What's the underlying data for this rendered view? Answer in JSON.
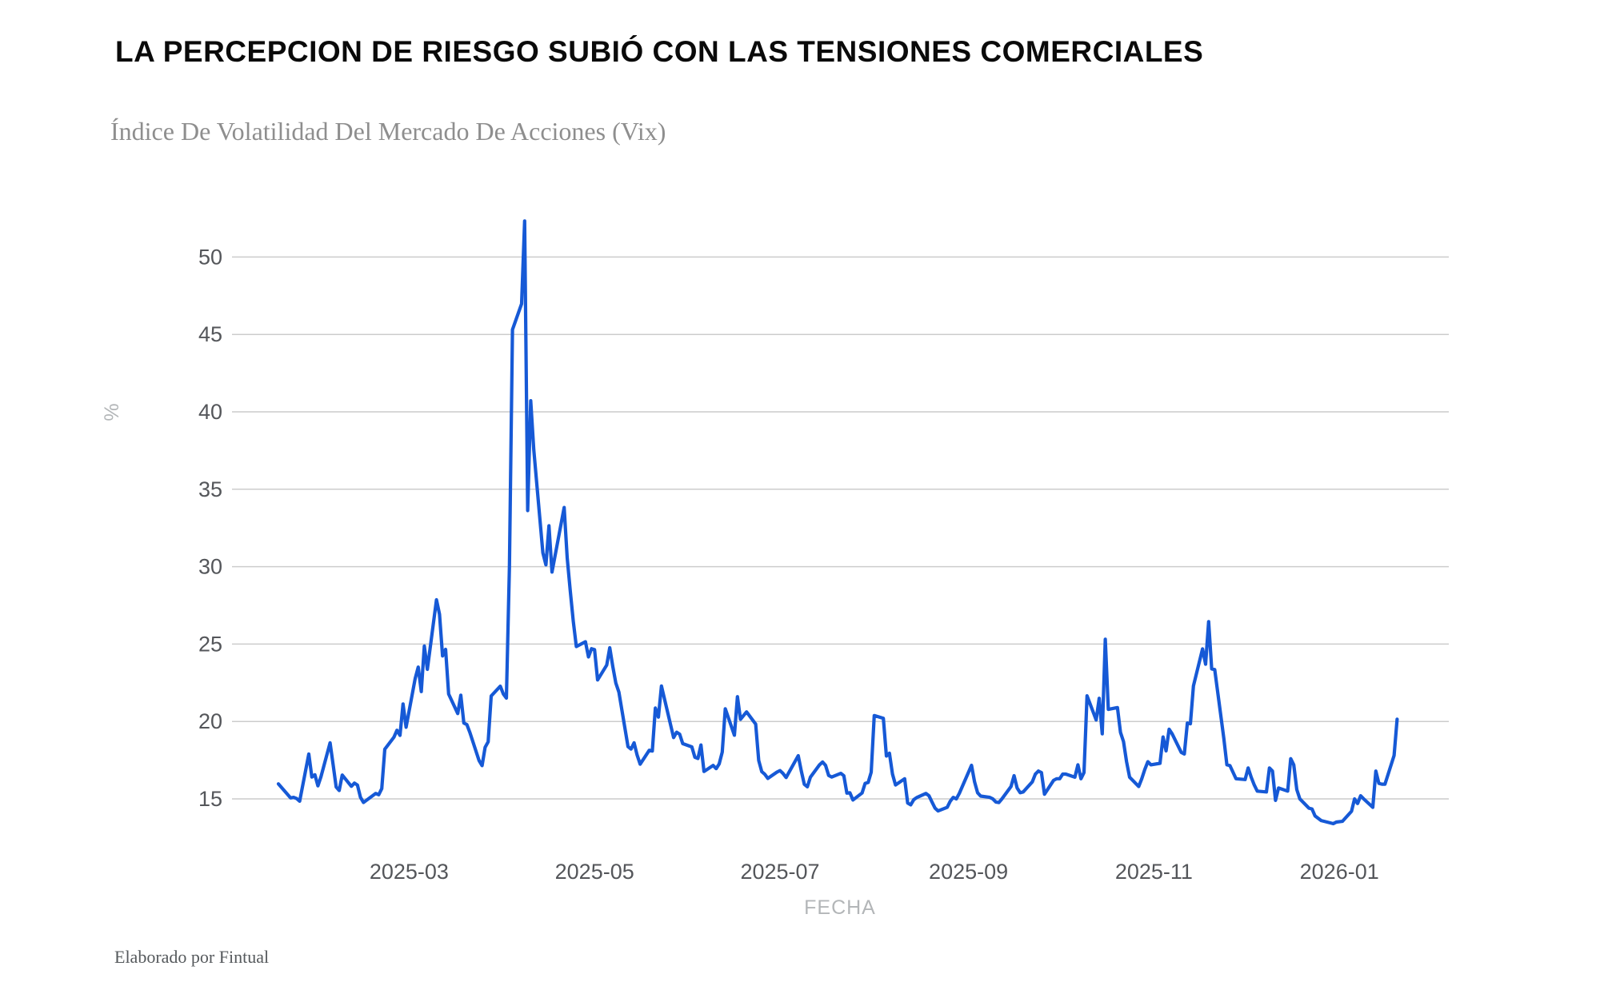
{
  "header": {
    "title": "LA PERCEPCION DE RIESGO SUBIÓ CON LAS TENSIONES COMERCIALES",
    "subtitle": "Índice De Volatilidad Del Mercado De Acciones (Vix)"
  },
  "footer": {
    "credit": "Elaborado por Fintual"
  },
  "chart_data": {
    "type": "line",
    "title": "LA PERCEPCION DE RIESGO SUBIÓ CON LAS TENSIONES COMERCIALES",
    "subtitle": "Índice De Volatilidad Del Mercado De Acciones (Vix)",
    "xlabel": "FECHA",
    "ylabel": "%",
    "grid": true,
    "legend": "none",
    "ylim": [
      13,
      53
    ],
    "y_ticks": [
      15,
      20,
      25,
      30,
      35,
      40,
      45,
      50
    ],
    "x_ticks": [
      {
        "label": "2025-03",
        "date": "2025-03-01"
      },
      {
        "label": "2025-05",
        "date": "2025-05-01"
      },
      {
        "label": "2025-07",
        "date": "2025-07-01"
      },
      {
        "label": "2025-09",
        "date": "2025-09-01"
      },
      {
        "label": "2025-11",
        "date": "2025-11-01"
      },
      {
        "label": "2026-01",
        "date": "2026-01-01"
      }
    ],
    "line_color": "#1659d6",
    "grid_color": "#cccccc",
    "tick_color": "#54565a",
    "axis_label_color": "#b3b6b8",
    "series": [
      {
        "name": "VIX",
        "points": [
          [
            "2025-01-17",
            15.97
          ],
          [
            "2025-01-21",
            15.06
          ],
          [
            "2025-01-22",
            15.1
          ],
          [
            "2025-01-23",
            15.02
          ],
          [
            "2025-01-24",
            14.85
          ],
          [
            "2025-01-27",
            17.9
          ],
          [
            "2025-01-28",
            16.41
          ],
          [
            "2025-01-29",
            16.56
          ],
          [
            "2025-01-30",
            15.84
          ],
          [
            "2025-01-31",
            16.43
          ],
          [
            "2025-02-03",
            18.62
          ],
          [
            "2025-02-04",
            17.21
          ],
          [
            "2025-02-05",
            15.77
          ],
          [
            "2025-02-06",
            15.54
          ],
          [
            "2025-02-07",
            16.54
          ],
          [
            "2025-02-10",
            15.81
          ],
          [
            "2025-02-11",
            16.02
          ],
          [
            "2025-02-12",
            15.89
          ],
          [
            "2025-02-13",
            15.1
          ],
          [
            "2025-02-14",
            14.77
          ],
          [
            "2025-02-18",
            15.35
          ],
          [
            "2025-02-19",
            15.27
          ],
          [
            "2025-02-20",
            15.66
          ],
          [
            "2025-02-21",
            18.21
          ],
          [
            "2025-02-24",
            18.98
          ],
          [
            "2025-02-25",
            19.43
          ],
          [
            "2025-02-26",
            19.1
          ],
          [
            "2025-02-27",
            21.13
          ],
          [
            "2025-02-28",
            19.63
          ],
          [
            "2025-03-03",
            22.78
          ],
          [
            "2025-03-04",
            23.51
          ],
          [
            "2025-03-05",
            21.93
          ],
          [
            "2025-03-06",
            24.87
          ],
          [
            "2025-03-07",
            23.37
          ],
          [
            "2025-03-10",
            27.86
          ],
          [
            "2025-03-11",
            26.92
          ],
          [
            "2025-03-12",
            24.23
          ],
          [
            "2025-03-13",
            24.66
          ],
          [
            "2025-03-14",
            21.77
          ],
          [
            "2025-03-17",
            20.51
          ],
          [
            "2025-03-18",
            21.7
          ],
          [
            "2025-03-19",
            19.9
          ],
          [
            "2025-03-20",
            19.8
          ],
          [
            "2025-03-21",
            19.28
          ],
          [
            "2025-03-24",
            17.48
          ],
          [
            "2025-03-25",
            17.15
          ],
          [
            "2025-03-26",
            18.33
          ],
          [
            "2025-03-27",
            18.69
          ],
          [
            "2025-03-28",
            21.65
          ],
          [
            "2025-03-31",
            22.28
          ],
          [
            "2025-04-01",
            21.77
          ],
          [
            "2025-04-02",
            21.51
          ],
          [
            "2025-04-03",
            30.02
          ],
          [
            "2025-04-04",
            45.31
          ],
          [
            "2025-04-07",
            46.98
          ],
          [
            "2025-04-08",
            52.33
          ],
          [
            "2025-04-09",
            33.62
          ],
          [
            "2025-04-10",
            40.72
          ],
          [
            "2025-04-11",
            37.56
          ],
          [
            "2025-04-14",
            30.89
          ],
          [
            "2025-04-15",
            30.12
          ],
          [
            "2025-04-16",
            32.64
          ],
          [
            "2025-04-17",
            29.65
          ],
          [
            "2025-04-21",
            33.82
          ],
          [
            "2025-04-22",
            30.57
          ],
          [
            "2025-04-23",
            28.45
          ],
          [
            "2025-04-24",
            26.47
          ],
          [
            "2025-04-25",
            24.84
          ],
          [
            "2025-04-28",
            25.15
          ],
          [
            "2025-04-29",
            24.17
          ],
          [
            "2025-04-30",
            24.7
          ],
          [
            "2025-05-01",
            24.64
          ],
          [
            "2025-05-02",
            22.68
          ],
          [
            "2025-05-05",
            23.64
          ],
          [
            "2025-05-06",
            24.76
          ],
          [
            "2025-05-07",
            23.55
          ],
          [
            "2025-05-08",
            22.48
          ],
          [
            "2025-05-09",
            21.9
          ],
          [
            "2025-05-12",
            18.38
          ],
          [
            "2025-05-13",
            18.22
          ],
          [
            "2025-05-14",
            18.62
          ],
          [
            "2025-05-15",
            17.83
          ],
          [
            "2025-05-16",
            17.24
          ],
          [
            "2025-05-19",
            18.14
          ],
          [
            "2025-05-20",
            18.09
          ],
          [
            "2025-05-21",
            20.87
          ],
          [
            "2025-05-22",
            20.28
          ],
          [
            "2025-05-23",
            22.29
          ],
          [
            "2025-05-27",
            18.96
          ],
          [
            "2025-05-28",
            19.31
          ],
          [
            "2025-05-29",
            19.18
          ],
          [
            "2025-05-30",
            18.57
          ],
          [
            "2025-06-02",
            18.36
          ],
          [
            "2025-06-03",
            17.69
          ],
          [
            "2025-06-04",
            17.61
          ],
          [
            "2025-06-05",
            18.48
          ],
          [
            "2025-06-06",
            16.77
          ],
          [
            "2025-06-09",
            17.16
          ],
          [
            "2025-06-10",
            16.95
          ],
          [
            "2025-06-11",
            17.26
          ],
          [
            "2025-06-12",
            18.02
          ],
          [
            "2025-06-13",
            20.82
          ],
          [
            "2025-06-16",
            19.11
          ],
          [
            "2025-06-17",
            21.6
          ],
          [
            "2025-06-18",
            20.14
          ],
          [
            "2025-06-20",
            20.62
          ],
          [
            "2025-06-23",
            19.83
          ],
          [
            "2025-06-24",
            17.48
          ],
          [
            "2025-06-25",
            16.76
          ],
          [
            "2025-06-26",
            16.59
          ],
          [
            "2025-06-27",
            16.32
          ],
          [
            "2025-06-30",
            16.73
          ],
          [
            "2025-07-01",
            16.83
          ],
          [
            "2025-07-02",
            16.64
          ],
          [
            "2025-07-03",
            16.38
          ],
          [
            "2025-07-07",
            17.79
          ],
          [
            "2025-07-08",
            16.81
          ],
          [
            "2025-07-09",
            15.94
          ],
          [
            "2025-07-10",
            15.78
          ],
          [
            "2025-07-11",
            16.4
          ],
          [
            "2025-07-14",
            17.2
          ],
          [
            "2025-07-15",
            17.38
          ],
          [
            "2025-07-16",
            17.16
          ],
          [
            "2025-07-17",
            16.52
          ],
          [
            "2025-07-18",
            16.41
          ],
          [
            "2025-07-21",
            16.65
          ],
          [
            "2025-07-22",
            16.5
          ],
          [
            "2025-07-23",
            15.37
          ],
          [
            "2025-07-24",
            15.39
          ],
          [
            "2025-07-25",
            14.93
          ],
          [
            "2025-07-28",
            15.38
          ],
          [
            "2025-07-29",
            16.0
          ],
          [
            "2025-07-30",
            16.06
          ],
          [
            "2025-07-31",
            16.72
          ],
          [
            "2025-08-01",
            20.38
          ],
          [
            "2025-08-04",
            20.2
          ],
          [
            "2025-08-05",
            17.77
          ],
          [
            "2025-08-06",
            17.95
          ],
          [
            "2025-08-07",
            16.6
          ],
          [
            "2025-08-08",
            15.9
          ],
          [
            "2025-08-11",
            16.3
          ],
          [
            "2025-08-12",
            14.73
          ],
          [
            "2025-08-13",
            14.62
          ],
          [
            "2025-08-14",
            14.95
          ],
          [
            "2025-08-15",
            15.09
          ],
          [
            "2025-08-18",
            15.35
          ],
          [
            "2025-08-19",
            15.2
          ],
          [
            "2025-08-20",
            14.8
          ],
          [
            "2025-08-21",
            14.4
          ],
          [
            "2025-08-22",
            14.22
          ],
          [
            "2025-08-25",
            14.45
          ],
          [
            "2025-08-26",
            14.85
          ],
          [
            "2025-08-27",
            15.1
          ],
          [
            "2025-08-28",
            15.0
          ],
          [
            "2025-08-29",
            15.36
          ],
          [
            "2025-09-02",
            17.17
          ],
          [
            "2025-09-03",
            16.1
          ],
          [
            "2025-09-04",
            15.4
          ],
          [
            "2025-09-05",
            15.18
          ],
          [
            "2025-09-08",
            15.1
          ],
          [
            "2025-09-09",
            15.0
          ],
          [
            "2025-09-10",
            14.8
          ],
          [
            "2025-09-11",
            14.76
          ],
          [
            "2025-09-12",
            15.0
          ],
          [
            "2025-09-15",
            15.8
          ],
          [
            "2025-09-16",
            16.5
          ],
          [
            "2025-09-17",
            15.7
          ],
          [
            "2025-09-18",
            15.4
          ],
          [
            "2025-09-19",
            15.45
          ],
          [
            "2025-09-22",
            16.1
          ],
          [
            "2025-09-23",
            16.6
          ],
          [
            "2025-09-24",
            16.8
          ],
          [
            "2025-09-25",
            16.7
          ],
          [
            "2025-09-26",
            15.3
          ],
          [
            "2025-09-29",
            16.2
          ],
          [
            "2025-09-30",
            16.3
          ],
          [
            "2025-10-01",
            16.3
          ],
          [
            "2025-10-02",
            16.6
          ],
          [
            "2025-10-03",
            16.6
          ],
          [
            "2025-10-06",
            16.4
          ],
          [
            "2025-10-07",
            17.2
          ],
          [
            "2025-10-08",
            16.3
          ],
          [
            "2025-10-09",
            16.7
          ],
          [
            "2025-10-10",
            21.66
          ],
          [
            "2025-10-13",
            20.1
          ],
          [
            "2025-10-14",
            21.5
          ],
          [
            "2025-10-15",
            19.2
          ],
          [
            "2025-10-16",
            25.31
          ],
          [
            "2025-10-17",
            20.78
          ],
          [
            "2025-10-20",
            20.9
          ],
          [
            "2025-10-21",
            19.3
          ],
          [
            "2025-10-22",
            18.7
          ],
          [
            "2025-10-23",
            17.4
          ],
          [
            "2025-10-24",
            16.4
          ],
          [
            "2025-10-27",
            15.8
          ],
          [
            "2025-10-28",
            16.3
          ],
          [
            "2025-10-29",
            16.9
          ],
          [
            "2025-10-30",
            17.4
          ],
          [
            "2025-10-31",
            17.2
          ],
          [
            "2025-11-03",
            17.3
          ],
          [
            "2025-11-04",
            19.0
          ],
          [
            "2025-11-05",
            18.1
          ],
          [
            "2025-11-06",
            19.5
          ],
          [
            "2025-11-07",
            19.2
          ],
          [
            "2025-11-10",
            18.0
          ],
          [
            "2025-11-11",
            17.9
          ],
          [
            "2025-11-12",
            19.9
          ],
          [
            "2025-11-13",
            19.85
          ],
          [
            "2025-11-14",
            22.3
          ],
          [
            "2025-11-17",
            24.69
          ],
          [
            "2025-11-18",
            23.7
          ],
          [
            "2025-11-19",
            26.45
          ],
          [
            "2025-11-20",
            23.4
          ],
          [
            "2025-11-21",
            23.35
          ],
          [
            "2025-11-24",
            18.9
          ],
          [
            "2025-11-25",
            17.2
          ],
          [
            "2025-11-26",
            17.15
          ],
          [
            "2025-11-28",
            16.3
          ],
          [
            "2025-12-01",
            16.25
          ],
          [
            "2025-12-02",
            17.0
          ],
          [
            "2025-12-03",
            16.4
          ],
          [
            "2025-12-04",
            15.9
          ],
          [
            "2025-12-05",
            15.5
          ],
          [
            "2025-12-08",
            15.45
          ],
          [
            "2025-12-09",
            17.0
          ],
          [
            "2025-12-10",
            16.8
          ],
          [
            "2025-12-11",
            14.9
          ],
          [
            "2025-12-12",
            15.7
          ],
          [
            "2025-12-15",
            15.5
          ],
          [
            "2025-12-16",
            17.6
          ],
          [
            "2025-12-17",
            17.2
          ],
          [
            "2025-12-18",
            15.6
          ],
          [
            "2025-12-19",
            15.0
          ],
          [
            "2025-12-22",
            14.4
          ],
          [
            "2025-12-23",
            14.35
          ],
          [
            "2025-12-24",
            13.9
          ],
          [
            "2025-12-26",
            13.6
          ],
          [
            "2025-12-29",
            13.45
          ],
          [
            "2025-12-30",
            13.4
          ],
          [
            "2025-12-31",
            13.5
          ],
          [
            "2026-01-02",
            13.55
          ],
          [
            "2026-01-05",
            14.2
          ],
          [
            "2026-01-06",
            15.0
          ],
          [
            "2026-01-07",
            14.7
          ],
          [
            "2026-01-08",
            15.2
          ],
          [
            "2026-01-09",
            15.0
          ],
          [
            "2026-01-12",
            14.45
          ],
          [
            "2026-01-13",
            16.8
          ],
          [
            "2026-01-14",
            16.0
          ],
          [
            "2026-01-15",
            15.95
          ],
          [
            "2026-01-16",
            15.95
          ],
          [
            "2026-01-19",
            17.8
          ],
          [
            "2026-01-20",
            20.15
          ]
        ]
      }
    ]
  }
}
